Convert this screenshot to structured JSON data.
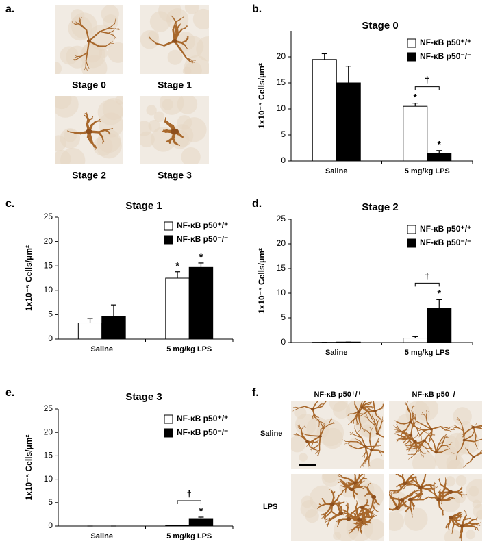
{
  "figure_labels": [
    "a.",
    "b.",
    "c.",
    "d.",
    "e.",
    "f."
  ],
  "panel_a": {
    "captions": [
      "Stage 0",
      "Stage 1",
      "Stage 2",
      "Stage 3"
    ]
  },
  "panel_f": {
    "columns": [
      "NF-κB p50⁺/⁺",
      "NF-κB p50⁻/⁻"
    ],
    "rows": [
      "Saline",
      "LPS"
    ]
  },
  "chart_data": [
    {
      "type": "bar",
      "title": "Stage 0",
      "y_label": "1x10⁻⁵ Cells/μm²",
      "categories": [
        "Saline",
        "5 mg/kg LPS"
      ],
      "ylim": [
        0,
        25
      ],
      "yticks": [
        0,
        5,
        10,
        15,
        20
      ],
      "series": [
        {
          "name": "NF-κB p50⁺/⁺",
          "color": "#ffffff",
          "values": [
            19.5,
            10.5
          ],
          "errors": [
            1.1,
            0.6
          ],
          "markers": [
            null,
            "*"
          ]
        },
        {
          "name": "NF-κB p50⁻/⁻",
          "color": "#000000",
          "values": [
            15,
            1.5
          ],
          "errors": [
            3.2,
            0.5
          ],
          "markers": [
            null,
            "*"
          ]
        }
      ],
      "comparisons": [
        {
          "category": "5 mg/kg LPS",
          "text": "†"
        }
      ]
    },
    {
      "type": "bar",
      "title": "Stage 1",
      "y_label": "1x10⁻⁵ Cells/μm²",
      "categories": [
        "Saline",
        "5 mg/kg LPS"
      ],
      "ylim": [
        0,
        25
      ],
      "yticks": [
        0,
        5,
        10,
        15,
        20,
        25
      ],
      "series": [
        {
          "name": "NF-κB p50⁺/⁺",
          "color": "#ffffff",
          "values": [
            3.3,
            12.5
          ],
          "errors": [
            0.9,
            1.3
          ],
          "markers": [
            null,
            "*"
          ]
        },
        {
          "name": "NF-κB p50⁻/⁻",
          "color": "#000000",
          "values": [
            4.7,
            14.7
          ],
          "errors": [
            2.3,
            0.9
          ],
          "markers": [
            null,
            "*"
          ]
        }
      ],
      "comparisons": []
    },
    {
      "type": "bar",
      "title": "Stage 2",
      "y_label": "1x10⁻⁵ Cells/μm²",
      "categories": [
        "Saline",
        "5 mg/kg LPS"
      ],
      "ylim": [
        0,
        25
      ],
      "yticks": [
        0,
        5,
        10,
        15,
        20,
        25
      ],
      "series": [
        {
          "name": "NF-κB p50⁺/⁺",
          "color": "#ffffff",
          "values": [
            0.05,
            0.9
          ],
          "errors": [
            0,
            0.3
          ],
          "markers": [
            null,
            null
          ]
        },
        {
          "name": "NF-κB p50⁻/⁻",
          "color": "#000000",
          "values": [
            0.1,
            6.9
          ],
          "errors": [
            0,
            1.8
          ],
          "markers": [
            null,
            "*"
          ]
        }
      ],
      "comparisons": [
        {
          "category": "5 mg/kg LPS",
          "text": "†"
        }
      ]
    },
    {
      "type": "bar",
      "title": "Stage 3",
      "y_label": "1x10⁻⁵ Cells/μm²",
      "categories": [
        "Saline",
        "5 mg/kg LPS"
      ],
      "ylim": [
        0,
        25
      ],
      "yticks": [
        0,
        5,
        10,
        15,
        20,
        25
      ],
      "series": [
        {
          "name": "NF-κB p50⁺/⁺",
          "color": "#ffffff",
          "values": [
            0,
            0.1
          ],
          "errors": [
            0,
            0
          ],
          "markers": [
            null,
            null
          ]
        },
        {
          "name": "NF-κB p50⁻/⁻",
          "color": "#000000",
          "values": [
            0,
            1.6
          ],
          "errors": [
            0,
            0.3
          ],
          "markers": [
            null,
            "*"
          ]
        }
      ],
      "comparisons": [
        {
          "category": "5 mg/kg LPS",
          "text": "†"
        }
      ]
    }
  ]
}
